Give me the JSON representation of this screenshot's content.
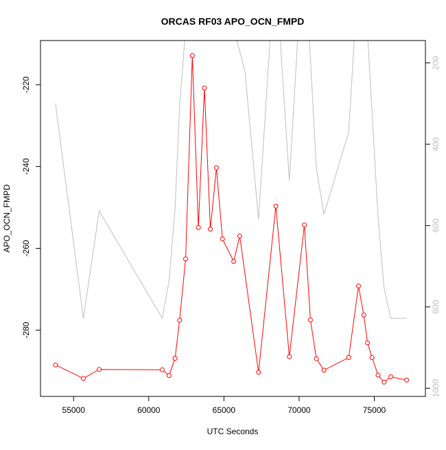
{
  "chart_data": {
    "type": "line",
    "title": "ORCAS RF03 APO_OCN_FMPD",
    "xlabel": "UTC Seconds",
    "ylabel": "APO_OCN_FMPD",
    "xlim": [
      52800,
      78400
    ],
    "ylim": [
      -296.2,
      -209.2
    ],
    "x_ticks": [
      55000,
      60000,
      65000,
      70000,
      75000
    ],
    "y_ticks": [
      -280,
      -260,
      -240,
      -220
    ],
    "y2lim": [
      1020,
      145
    ],
    "y2_ticks": [
      200,
      400,
      600,
      800,
      1000
    ],
    "grid": false,
    "colors": {
      "main_series": "#ff0000",
      "secondary_series": "#bebebe",
      "axis": "#000000",
      "secondary_axis_text": "#bebebe"
    },
    "series": [
      {
        "axis": "left",
        "marker": "open-circle",
        "x": [
          53800,
          55650,
          56700,
          60900,
          61350,
          61750,
          62050,
          62450,
          62900,
          63300,
          63700,
          64100,
          64500,
          64900,
          65650,
          66050,
          67300,
          68450,
          69350,
          70350,
          70750,
          71150,
          71650,
          73300,
          73950,
          74300,
          74550,
          74850,
          75250,
          75650,
          76100,
          77150
        ],
        "y": [
          -288.5,
          -291.8,
          -289.6,
          -289.7,
          -291.1,
          -286.9,
          -277.6,
          -262.6,
          -212.9,
          -254.9,
          -220.8,
          -255.3,
          -240.3,
          -257.7,
          -263.2,
          -257.0,
          -290.3,
          -249.7,
          -286.5,
          -254.3,
          -277.5,
          -287.0,
          -289.8,
          -286.7,
          -269.2,
          -276.3,
          -283.1,
          -286.7,
          -291.0,
          -292.7,
          -291.4,
          -292.2
        ]
      },
      {
        "axis": "right",
        "marker": "none",
        "x": [
          53800,
          55650,
          56700,
          60900,
          61350,
          61750,
          62050,
          62450,
          62700,
          63100,
          63300,
          63600,
          64000,
          64250,
          64600,
          64900,
          65650,
          66400,
          67300,
          68300,
          68550,
          69350,
          70100,
          70500,
          71150,
          71650,
          73300,
          73850,
          74400,
          75250,
          75650,
          76100,
          77150
        ],
        "y": [
          300,
          828,
          564,
          828,
          735,
          560,
          306,
          118,
          30,
          18,
          80,
          28,
          118,
          25,
          118,
          118,
          115,
          220,
          585,
          8,
          30,
          490,
          20,
          20,
          459,
          572,
          370,
          30,
          30,
          578,
          753,
          828,
          828
        ]
      }
    ]
  }
}
